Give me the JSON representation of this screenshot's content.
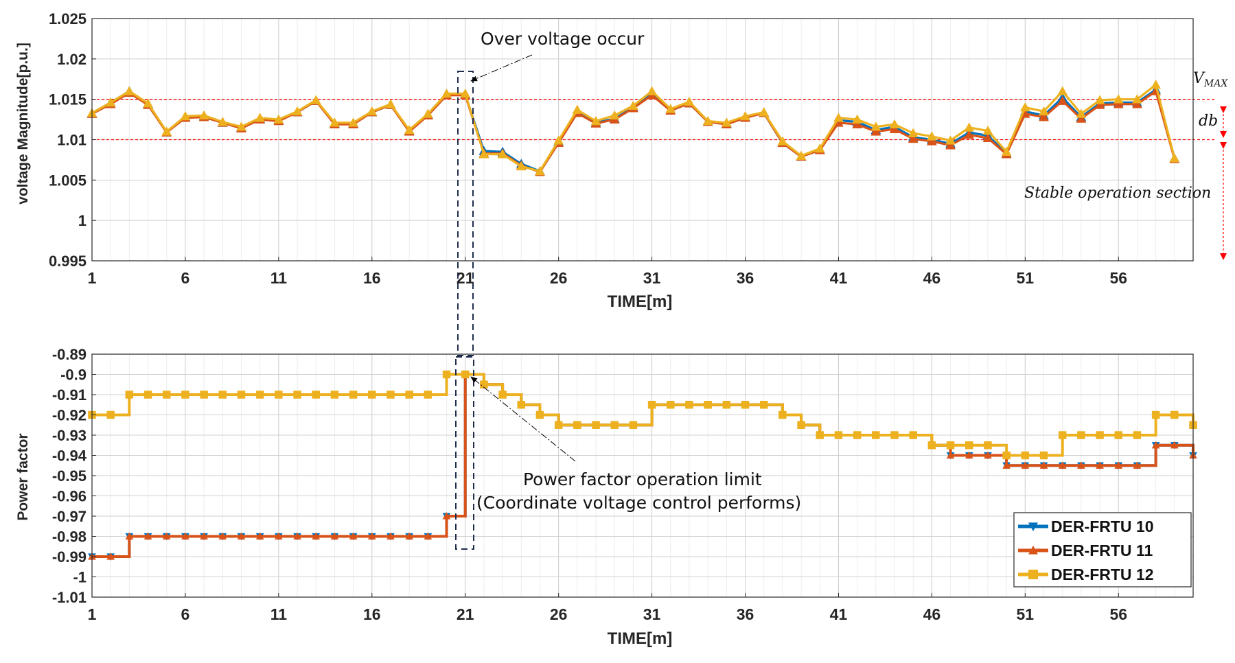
{
  "colors": {
    "series": [
      "#0072BD",
      "#D95319",
      "#EDB120"
    ],
    "grid": "#dddddd",
    "threshold": "#ff0000",
    "arrow": "#ff0000"
  },
  "chart_data": [
    {
      "type": "line",
      "ylabel": "voltage Magnitude[p.u.]",
      "xlabel": "TIME[m]",
      "xlim": [
        1,
        60
      ],
      "ylim": [
        0.995,
        1.025
      ],
      "xticks": [
        "1",
        "6",
        "11",
        "16",
        "21",
        "26",
        "31",
        "36",
        "41",
        "46",
        "51",
        "56"
      ],
      "yticks": [
        "0.995",
        "1",
        "1.005",
        "1.01",
        "1.015",
        "1.02",
        "1.025"
      ],
      "grid": true,
      "step": false,
      "marker": "triangle-up",
      "thresholds": [
        1.015,
        1.01
      ],
      "series": [
        {
          "values": [
            1.0132,
            1.0146,
            1.016,
            1.0144,
            1.0109,
            1.0128,
            1.0129,
            1.0121,
            1.0115,
            1.0126,
            1.0124,
            1.0134,
            1.0148,
            1.012,
            1.012,
            1.0134,
            1.0143,
            1.0111,
            1.0131,
            1.0156,
            1.0156,
            1.0086,
            1.0085,
            1.007,
            1.0061,
            1.0097,
            1.0134,
            1.0121,
            1.0126,
            1.014,
            1.0157,
            1.0136,
            1.0145,
            1.0122,
            1.012,
            1.0128,
            1.0133,
            1.0096,
            1.0079,
            1.0088,
            1.0124,
            1.0122,
            1.0112,
            1.0116,
            1.0103,
            1.01,
            1.0095,
            1.0109,
            1.0105,
            1.0083,
            1.0135,
            1.013,
            1.0152,
            1.0128,
            1.0145,
            1.0146,
            1.0146,
            1.0162,
            1.0077
          ]
        },
        {
          "values": [
            1.0132,
            1.0144,
            1.0158,
            1.0143,
            1.0109,
            1.0127,
            1.0128,
            1.0121,
            1.0114,
            1.0125,
            1.0123,
            1.0134,
            1.0148,
            1.0119,
            1.0119,
            1.0134,
            1.0143,
            1.011,
            1.013,
            1.0155,
            1.0155,
            1.0083,
            1.0083,
            1.0068,
            1.006,
            1.0096,
            1.0133,
            1.012,
            1.0125,
            1.0139,
            1.0155,
            1.0136,
            1.0145,
            1.0122,
            1.0119,
            1.0127,
            1.0133,
            1.0096,
            1.0079,
            1.0087,
            1.0121,
            1.0119,
            1.011,
            1.0113,
            1.0101,
            1.0098,
            1.0093,
            1.0106,
            1.0102,
            1.0082,
            1.0132,
            1.0128,
            1.0148,
            1.0126,
            1.0143,
            1.0144,
            1.0144,
            1.016,
            1.0076
          ]
        },
        {
          "values": [
            1.0133,
            1.0146,
            1.016,
            1.0145,
            1.011,
            1.0129,
            1.013,
            1.0122,
            1.0116,
            1.0127,
            1.0125,
            1.0135,
            1.0149,
            1.0121,
            1.0121,
            1.0135,
            1.0144,
            1.0112,
            1.0132,
            1.0157,
            1.0157,
            1.0082,
            1.0082,
            1.0067,
            1.0061,
            1.0099,
            1.0137,
            1.0123,
            1.013,
            1.0142,
            1.016,
            1.0138,
            1.0147,
            1.0123,
            1.0121,
            1.0129,
            1.0134,
            1.0098,
            1.008,
            1.0089,
            1.0127,
            1.0125,
            1.0116,
            1.0119,
            1.0108,
            1.0104,
            1.0099,
            1.0115,
            1.0111,
            1.0085,
            1.014,
            1.0135,
            1.016,
            1.0132,
            1.0149,
            1.015,
            1.015,
            1.0168,
            1.0077
          ]
        }
      ]
    },
    {
      "type": "line",
      "ylabel": "Power factor",
      "xlabel": "TIME[m]",
      "xlim": [
        1,
        60
      ],
      "ylim": [
        -1.01,
        -0.89
      ],
      "xticks": [
        "1",
        "6",
        "11",
        "16",
        "21",
        "26",
        "31",
        "36",
        "41",
        "46",
        "51",
        "56"
      ],
      "yticks": [
        "-1.01",
        "-1",
        "-0.99",
        "-0.98",
        "-0.97",
        "-0.96",
        "-0.95",
        "-0.94",
        "-0.93",
        "-0.92",
        "-0.91",
        "-0.9",
        "-0.89"
      ],
      "grid": true,
      "step": true,
      "legend_position": "bottom-right",
      "series": [
        {
          "name": "DER-FRTU 10",
          "marker": "triangle-down",
          "values": [
            -0.99,
            -0.99,
            -0.98,
            -0.98,
            -0.98,
            -0.98,
            -0.98,
            -0.98,
            -0.98,
            -0.98,
            -0.98,
            -0.98,
            -0.98,
            -0.98,
            -0.98,
            -0.98,
            -0.98,
            -0.98,
            -0.98,
            -0.97,
            -0.9,
            -0.905,
            -0.91,
            -0.915,
            -0.92,
            -0.925,
            -0.925,
            -0.925,
            -0.925,
            -0.925,
            -0.915,
            -0.915,
            -0.915,
            -0.915,
            -0.915,
            -0.915,
            -0.915,
            -0.92,
            -0.925,
            -0.93,
            -0.93,
            -0.93,
            -0.93,
            -0.93,
            -0.93,
            -0.935,
            -0.94,
            -0.94,
            -0.94,
            -0.945,
            -0.945,
            -0.945,
            -0.945,
            -0.945,
            -0.945,
            -0.945,
            -0.945,
            -0.935,
            -0.935,
            -0.94
          ]
        },
        {
          "name": "DER-FRTU 11",
          "marker": "triangle-up",
          "values": [
            -0.99,
            -0.99,
            -0.98,
            -0.98,
            -0.98,
            -0.98,
            -0.98,
            -0.98,
            -0.98,
            -0.98,
            -0.98,
            -0.98,
            -0.98,
            -0.98,
            -0.98,
            -0.98,
            -0.98,
            -0.98,
            -0.98,
            -0.97,
            -0.9,
            -0.905,
            -0.91,
            -0.915,
            -0.92,
            -0.925,
            -0.925,
            -0.925,
            -0.925,
            -0.925,
            -0.915,
            -0.915,
            -0.915,
            -0.915,
            -0.915,
            -0.915,
            -0.915,
            -0.92,
            -0.925,
            -0.93,
            -0.93,
            -0.93,
            -0.93,
            -0.93,
            -0.93,
            -0.935,
            -0.94,
            -0.94,
            -0.94,
            -0.945,
            -0.945,
            -0.945,
            -0.945,
            -0.945,
            -0.945,
            -0.945,
            -0.945,
            -0.935,
            -0.935,
            -0.94
          ]
        },
        {
          "name": "DER-FRTU 12",
          "marker": "square",
          "values": [
            -0.92,
            -0.92,
            -0.91,
            -0.91,
            -0.91,
            -0.91,
            -0.91,
            -0.91,
            -0.91,
            -0.91,
            -0.91,
            -0.91,
            -0.91,
            -0.91,
            -0.91,
            -0.91,
            -0.91,
            -0.91,
            -0.91,
            -0.9,
            -0.9,
            -0.905,
            -0.91,
            -0.915,
            -0.92,
            -0.925,
            -0.925,
            -0.925,
            -0.925,
            -0.925,
            -0.915,
            -0.915,
            -0.915,
            -0.915,
            -0.915,
            -0.915,
            -0.915,
            -0.92,
            -0.925,
            -0.93,
            -0.93,
            -0.93,
            -0.93,
            -0.93,
            -0.93,
            -0.935,
            -0.935,
            -0.935,
            -0.935,
            -0.94,
            -0.94,
            -0.94,
            -0.93,
            -0.93,
            -0.93,
            -0.93,
            -0.93,
            -0.92,
            -0.92,
            -0.925
          ]
        }
      ]
    }
  ],
  "annotations": {
    "over_voltage": "Over voltage occur",
    "vmax": "V",
    "vmax_sub": "MAX",
    "db": "db",
    "stable": "Stable operation section",
    "pf_limit_line1": "Power factor operation limit",
    "pf_limit_line2": "(Coordinate voltage control performs)"
  }
}
